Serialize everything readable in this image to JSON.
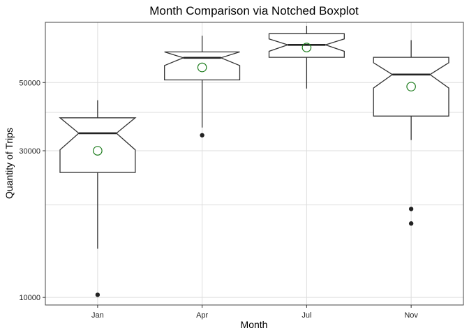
{
  "chart_data": {
    "type": "boxplot",
    "variant": "notched",
    "title": "Month Comparison via Notched Boxplot",
    "xlabel": "Month",
    "ylabel": "Quantity of Trips",
    "y_scale": "log",
    "ylim": [
      9450,
      78500
    ],
    "y_ticks": [
      10000,
      30000,
      50000
    ],
    "y_tick_labels": [
      "10000",
      "30000",
      "50000"
    ],
    "y_minor_gridlines": [
      20000,
      40000
    ],
    "grid": true,
    "categories": [
      "Jan",
      "Apr",
      "Jul",
      "Nov"
    ],
    "boxes": [
      {
        "category": "Jan",
        "whisker_low": 14400,
        "q1": 25500,
        "median": 34200,
        "q3": 38400,
        "whisker_high": 43800,
        "notch_low": 30200,
        "notch_high": 38400,
        "mean": 30000,
        "outliers": [
          10200
        ]
      },
      {
        "category": "Apr",
        "whisker_low": 35700,
        "q1": 51000,
        "median": 60200,
        "q3": 62900,
        "whisker_high": 71000,
        "notch_low": 56800,
        "notch_high": 62900,
        "mean": 56000,
        "outliers": [
          33700
        ]
      },
      {
        "category": "Jul",
        "whisker_low": 47800,
        "q1": 60400,
        "median": 66300,
        "q3": 72100,
        "whisker_high": 76500,
        "notch_low": 63200,
        "notch_high": 69300,
        "mean": 65000,
        "outliers": []
      },
      {
        "category": "Nov",
        "whisker_low": 32500,
        "q1": 38900,
        "median": 53100,
        "q3": 60400,
        "whisker_high": 68700,
        "notch_low": 48000,
        "notch_high": 58000,
        "mean": 48500,
        "outliers": [
          17400,
          19400
        ]
      }
    ],
    "colors": {
      "box": "#333333",
      "median": "#222222",
      "mean_marker": "#1a7a1a",
      "outlier": "#222222",
      "grid": "#dddddd",
      "panel_border": "#444444"
    }
  }
}
